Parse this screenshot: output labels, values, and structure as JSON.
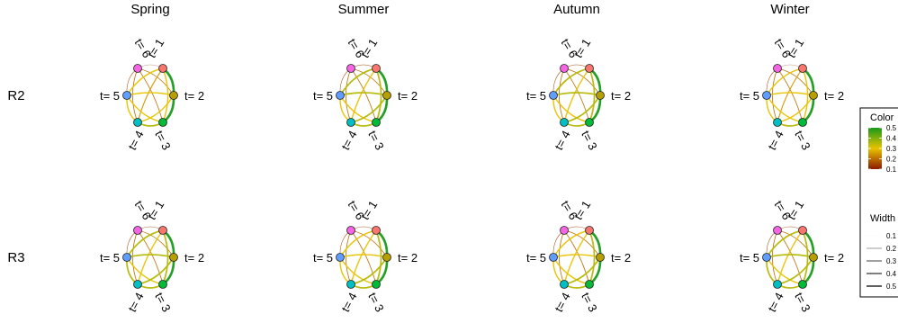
{
  "chart_data": {
    "type": "network",
    "columns": [
      "Spring",
      "Summer",
      "Autumn",
      "Winter"
    ],
    "rows": [
      "R2",
      "R3"
    ],
    "nodes": [
      {
        "id": 1,
        "label": "t= 1",
        "color": "#f8766d"
      },
      {
        "id": 2,
        "label": "t= 2",
        "color": "#b79f00"
      },
      {
        "id": 3,
        "label": "t= 3",
        "color": "#00ba38"
      },
      {
        "id": 4,
        "label": "t= 4",
        "color": "#00bfc4"
      },
      {
        "id": 5,
        "label": "t= 5",
        "color": "#619cff"
      },
      {
        "id": 6,
        "label": "t= 6",
        "color": "#f564e3"
      }
    ],
    "edge_pairs": [
      [
        1,
        2
      ],
      [
        2,
        3
      ],
      [
        1,
        3
      ],
      [
        1,
        4
      ],
      [
        1,
        5
      ],
      [
        1,
        6
      ],
      [
        2,
        4
      ],
      [
        2,
        5
      ],
      [
        2,
        6
      ],
      [
        3,
        4
      ],
      [
        3,
        5
      ],
      [
        3,
        6
      ],
      [
        4,
        5
      ],
      [
        4,
        6
      ],
      [
        5,
        6
      ]
    ],
    "panels": [
      {
        "row": "R2",
        "column": "Spring",
        "weights": [
          0.5,
          0.5,
          0.3,
          0.25,
          0.3,
          0.1,
          0.3,
          0.3,
          0.2,
          0.35,
          0.3,
          0.2,
          0.3,
          0.2,
          0.15
        ]
      },
      {
        "row": "R2",
        "column": "Summer",
        "weights": [
          0.5,
          0.5,
          0.35,
          0.3,
          0.35,
          0.15,
          0.35,
          0.35,
          0.2,
          0.35,
          0.3,
          0.2,
          0.3,
          0.2,
          0.15
        ]
      },
      {
        "row": "R2",
        "column": "Autumn",
        "weights": [
          0.5,
          0.5,
          0.35,
          0.3,
          0.35,
          0.15,
          0.35,
          0.35,
          0.2,
          0.35,
          0.3,
          0.2,
          0.3,
          0.2,
          0.15
        ]
      },
      {
        "row": "R2",
        "column": "Winter",
        "weights": [
          0.5,
          0.5,
          0.3,
          0.25,
          0.3,
          0.1,
          0.3,
          0.3,
          0.2,
          0.35,
          0.3,
          0.2,
          0.3,
          0.2,
          0.15
        ]
      },
      {
        "row": "R3",
        "column": "Spring",
        "weights": [
          0.5,
          0.5,
          0.35,
          0.3,
          0.35,
          0.15,
          0.35,
          0.35,
          0.2,
          0.35,
          0.3,
          0.2,
          0.35,
          0.2,
          0.15
        ]
      },
      {
        "row": "R3",
        "column": "Summer",
        "weights": [
          0.5,
          0.5,
          0.35,
          0.3,
          0.3,
          0.15,
          0.35,
          0.3,
          0.2,
          0.35,
          0.3,
          0.2,
          0.3,
          0.2,
          0.15
        ]
      },
      {
        "row": "R3",
        "column": "Autumn",
        "weights": [
          0.5,
          0.5,
          0.35,
          0.3,
          0.3,
          0.15,
          0.35,
          0.3,
          0.2,
          0.35,
          0.3,
          0.2,
          0.3,
          0.2,
          0.15
        ]
      },
      {
        "row": "R3",
        "column": "Winter",
        "weights": [
          0.5,
          0.5,
          0.35,
          0.3,
          0.35,
          0.15,
          0.35,
          0.35,
          0.2,
          0.35,
          0.3,
          0.2,
          0.35,
          0.2,
          0.15
        ]
      }
    ],
    "legend": {
      "color": {
        "title": "Color",
        "ticks": [
          "0.5",
          "0.4",
          "0.3",
          "0.2",
          "0.1"
        ],
        "values": [
          0.5,
          0.4,
          0.3,
          0.2,
          0.1
        ],
        "range": [
          0.1,
          0.5
        ],
        "gradient": [
          "#1a9a1a",
          "#e8c300",
          "#8b1a00"
        ]
      },
      "width": {
        "title": "Width",
        "ticks": [
          "0.1",
          "0.2",
          "0.3",
          "0.4",
          "0.5"
        ],
        "values": [
          0.1,
          0.2,
          0.3,
          0.4,
          0.5
        ]
      }
    },
    "legend_position": "right"
  }
}
